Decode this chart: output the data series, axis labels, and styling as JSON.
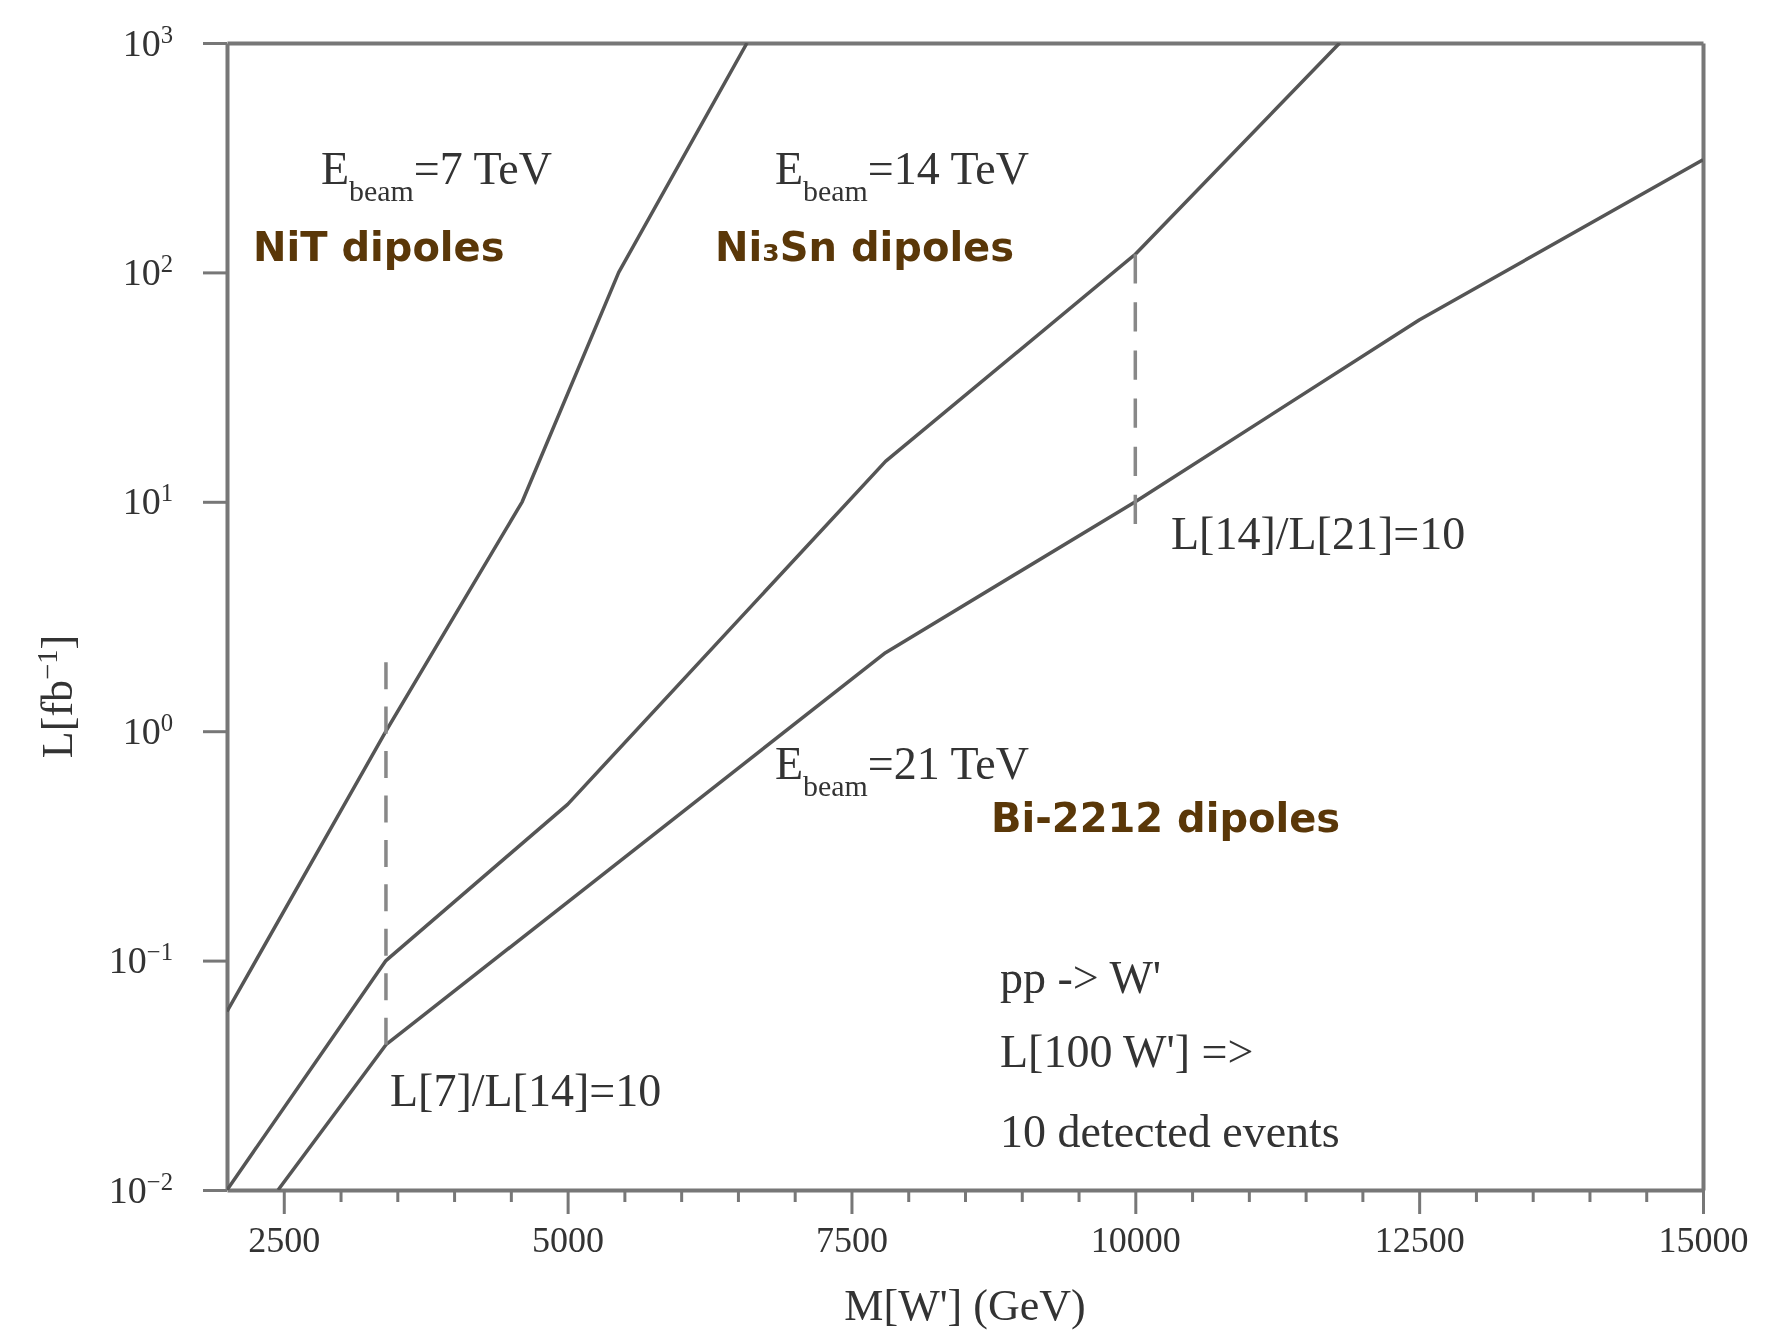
{
  "chart_data": {
    "type": "line",
    "xlabel": "M[W'] (GeV)",
    "ylabel": "L[fb$^{−1}$]",
    "log": "y",
    "xlim": [
      2000,
      15000
    ],
    "ylim": [
      0.01,
      1000
    ],
    "xticks": [
      2500,
      {
        "value": 3000,
        "label": null
      },
      {
        "value": 3500,
        "label": null
      },
      {
        "value": 4000,
        "label": null
      },
      {
        "value": 4500,
        "label": null
      },
      5000,
      {
        "value": 5500,
        "label": null
      },
      {
        "value": 6000,
        "label": null
      },
      {
        "value": 6500,
        "label": null
      },
      {
        "value": 7000,
        "label": null
      },
      7500,
      {
        "value": 8000,
        "label": null
      },
      {
        "value": 8500,
        "label": null
      },
      {
        "value": 9000,
        "label": null
      },
      {
        "value": 9500,
        "label": null
      },
      10000,
      {
        "value": 10500,
        "label": null
      },
      {
        "value": 11000,
        "label": null
      },
      {
        "value": 11500,
        "label": null
      },
      {
        "value": 12000,
        "label": null
      },
      12500,
      {
        "value": 13000,
        "label": null
      },
      {
        "value": 13500,
        "label": null
      },
      {
        "value": 14000,
        "label": null
      },
      {
        "value": 14500,
        "label": null
      },
      15000
    ],
    "yticks": [
      {
        "value": 0.01,
        "label": "10$^{−2}$"
      },
      {
        "value": 0.1,
        "label": "10$^{−1}$"
      },
      {
        "value": 1,
        "label": "10$^{0}$"
      },
      {
        "value": 10,
        "label": "10$^{1}$"
      },
      {
        "value": 100,
        "label": "10$^{2}$"
      },
      {
        "value": 1000,
        "label": "10$^{3}$"
      }
    ],
    "series": [
      {
        "color": "#555555",
        "line_style": "solid",
        "x": [
          2000,
          3400,
          4600,
          5450,
          6580
        ],
        "values": [
          0.06,
          1,
          10,
          100,
          1000
        ]
      },
      {
        "color": "#555555",
        "line_style": "solid",
        "x": [
          2000,
          3400,
          5000,
          7800,
          10000,
          11800
        ],
        "values": [
          0.01,
          0.1,
          0.48,
          15,
          120,
          1000
        ]
      },
      {
        "color": "#555555",
        "line_style": "solid",
        "x": [
          2450,
          3400,
          7800,
          10000,
          12500,
          15000
        ],
        "values": [
          0.01,
          0.043,
          2.2,
          10,
          62,
          310
        ]
      },
      {
        "color": "#888888",
        "line_style": "dashed",
        "x": [
          3400,
          3400
        ],
        "values": [
          2,
          0.043
        ]
      },
      {
        "color": "#888888",
        "line_style": "dashed",
        "x": [
          10000,
          10000
        ],
        "values": [
          120,
          8
        ]
      }
    ],
    "annotations": [
      "E$_{beam}$=7 TeV",
      "E$_{beam}$=14 TeV",
      "E$_{beam}$=21 TeV",
      "NiT dipoles",
      "Ni₃Sn dipoles",
      "Bi-2212 dipoles",
      "L[7]/L[14]=10",
      "L[14]/L[21]=10",
      "pp -> W'",
      "L[100 W'] =>",
      "10 detected events"
    ]
  }
}
